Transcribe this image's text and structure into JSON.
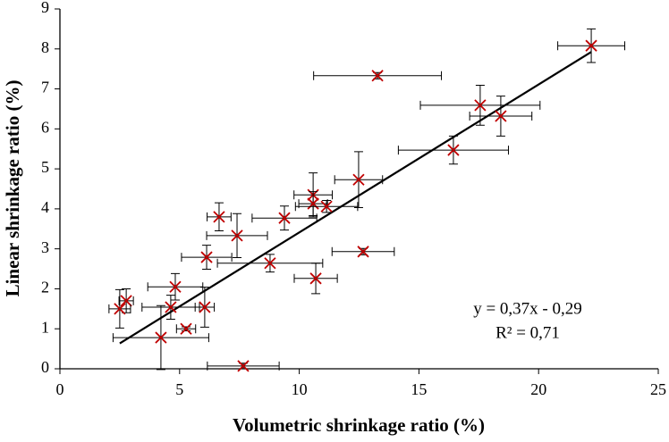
{
  "chart_data": {
    "type": "scatter",
    "xlabel": "Volumetric shrinkage ratio (%)",
    "ylabel": "Linear shrinkage ratio (%)",
    "xlim": [
      0,
      25
    ],
    "xticks": [
      0,
      5,
      10,
      15,
      20,
      25
    ],
    "ylim": [
      0,
      9
    ],
    "yticks": [
      0,
      1,
      2,
      3,
      4,
      5,
      6,
      7,
      8,
      9
    ],
    "grid": false,
    "series": [
      {
        "color": "#c00000",
        "error_color": "#000000",
        "x": [
          22.2,
          13.27,
          17.56,
          18.42,
          16.44,
          12.48,
          10.58,
          10.58,
          11.14,
          9.38,
          6.65,
          7.4,
          6.13,
          12.67,
          8.78,
          10.69,
          4.82,
          2.77,
          2.5,
          4.63,
          6.05,
          5.27,
          4.22,
          7.66
        ],
        "values": [
          8.08,
          7.33,
          6.59,
          6.32,
          5.47,
          4.73,
          4.35,
          4.13,
          4.06,
          3.77,
          3.8,
          3.33,
          2.79,
          2.93,
          2.64,
          2.26,
          2.05,
          1.7,
          1.5,
          1.54,
          1.54,
          1.0,
          0.78,
          0.07
        ],
        "x_errors": [
          1.4,
          2.67,
          2.5,
          1.3,
          2.3,
          1.0,
          0.8,
          0.6,
          1.3,
          1.35,
          0.5,
          1.27,
          1.05,
          1.3,
          2.2,
          0.9,
          1.15,
          0.3,
          0.45,
          1.2,
          0.4,
          0.4,
          2.0,
          1.5
        ],
        "y_errors": [
          0.42,
          0.08,
          0.5,
          0.5,
          0.35,
          0.7,
          0.55,
          0.3,
          0.15,
          0.3,
          0.35,
          0.55,
          0.3,
          0.08,
          0.22,
          0.38,
          0.33,
          0.3,
          0.48,
          0.3,
          0.5,
          0.05,
          0.8,
          0.07
        ]
      }
    ],
    "trendline": {
      "slope": 0.37,
      "intercept": -0.29,
      "xlim": [
        2.5,
        22.2
      ],
      "color": "#000000"
    },
    "annotations": [
      "y = 0,37x - 0,29",
      "R² = 0,71"
    ]
  }
}
